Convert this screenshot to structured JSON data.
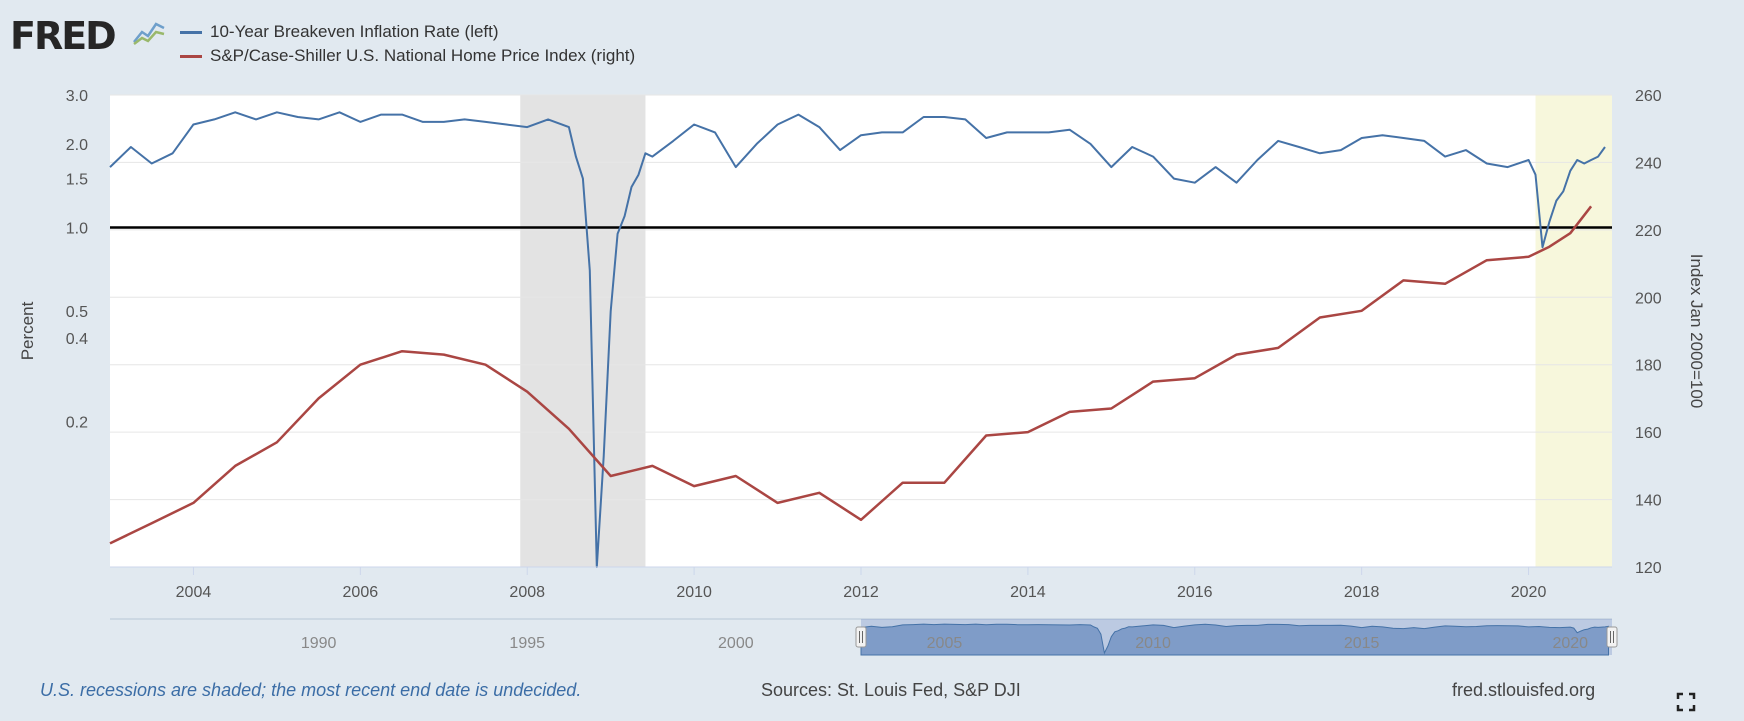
{
  "brand": {
    "logo_text": "FRED",
    "logo_icon": "fred-line-graph-icon"
  },
  "legend": [
    {
      "label": "10-Year Breakeven Inflation Rate (left)",
      "color": "#4572a7"
    },
    {
      "label": "S&P/Case-Shiller U.S. National Home Price Index (right)",
      "color": "#aa4643"
    }
  ],
  "footer": {
    "note": "U.S. recessions are shaded; the most recent end date is undecided.",
    "sources": "Sources: St. Louis Fed, S&P DJI",
    "site": "fred.stlouisfed.org",
    "fullscreen_icon": "fullscreen-icon"
  },
  "colors": {
    "breakeven": "#4572a7",
    "home_price": "#aa4643",
    "recession_shade": "#e3e3e3",
    "undecided_shade": "#f7f7dc",
    "navigator": "#7f9cc8"
  },
  "chart_data": {
    "type": "line",
    "title": "",
    "xlabel": "",
    "x_ticks": [
      "2004",
      "2006",
      "2008",
      "2010",
      "2012",
      "2014",
      "2016",
      "2018",
      "2020"
    ],
    "xlim": [
      "2003-01",
      "2021-01"
    ],
    "left_axis": {
      "label": "Percent",
      "scale": "log",
      "ticks": [
        3.0,
        2.0,
        1.5,
        1.0,
        0.5,
        0.4,
        0.2
      ],
      "tick_labels": [
        "3.0",
        "2.0",
        "1.5",
        "1.0",
        "0.5",
        "0.4",
        "0.2"
      ],
      "range": [
        0.06,
        3.0
      ]
    },
    "right_axis": {
      "label": "Index Jan 2000=100",
      "scale": "linear",
      "ticks": [
        120,
        140,
        160,
        180,
        200,
        220,
        240,
        260
      ],
      "range": [
        120,
        260
      ]
    },
    "reference_line": {
      "axis": "left",
      "value": 1.0,
      "color": "#000000"
    },
    "shaded_periods": [
      {
        "start": "2007-12",
        "end": "2009-06",
        "kind": "recession"
      },
      {
        "start": "2020-02",
        "end": "2021-01",
        "kind": "recession-undecided"
      }
    ],
    "series": [
      {
        "name": "10-Year Breakeven Inflation Rate (left)",
        "axis": "left",
        "color": "#4572a7",
        "x": [
          "2003-01",
          "2003-04",
          "2003-07",
          "2003-10",
          "2004-01",
          "2004-04",
          "2004-07",
          "2004-10",
          "2005-01",
          "2005-04",
          "2005-07",
          "2005-10",
          "2006-01",
          "2006-04",
          "2006-07",
          "2006-10",
          "2007-01",
          "2007-04",
          "2007-07",
          "2007-10",
          "2008-01",
          "2008-04",
          "2008-07",
          "2008-08",
          "2008-09",
          "2008-10",
          "2008-11",
          "2008-12",
          "2009-01",
          "2009-02",
          "2009-03",
          "2009-04",
          "2009-05",
          "2009-06",
          "2009-07",
          "2009-10",
          "2010-01",
          "2010-04",
          "2010-07",
          "2010-10",
          "2011-01",
          "2011-04",
          "2011-07",
          "2011-10",
          "2012-01",
          "2012-04",
          "2012-07",
          "2012-10",
          "2013-01",
          "2013-04",
          "2013-07",
          "2013-10",
          "2014-01",
          "2014-04",
          "2014-07",
          "2014-10",
          "2015-01",
          "2015-04",
          "2015-07",
          "2015-10",
          "2016-01",
          "2016-04",
          "2016-07",
          "2016-10",
          "2017-01",
          "2017-04",
          "2017-07",
          "2017-10",
          "2018-01",
          "2018-04",
          "2018-07",
          "2018-10",
          "2019-01",
          "2019-04",
          "2019-07",
          "2019-10",
          "2020-01",
          "2020-02",
          "2020-03",
          "2020-04",
          "2020-05",
          "2020-06",
          "2020-07",
          "2020-08",
          "2020-09",
          "2020-10",
          "2020-11",
          "2020-12"
        ],
        "values": [
          1.65,
          1.95,
          1.7,
          1.85,
          2.35,
          2.45,
          2.6,
          2.45,
          2.6,
          2.5,
          2.45,
          2.6,
          2.4,
          2.55,
          2.55,
          2.4,
          2.4,
          2.45,
          2.4,
          2.35,
          2.3,
          2.45,
          2.3,
          1.8,
          1.5,
          0.7,
          0.06,
          0.15,
          0.5,
          0.95,
          1.1,
          1.4,
          1.55,
          1.85,
          1.8,
          2.05,
          2.35,
          2.2,
          1.65,
          2.0,
          2.35,
          2.55,
          2.3,
          1.9,
          2.15,
          2.2,
          2.2,
          2.5,
          2.5,
          2.45,
          2.1,
          2.2,
          2.2,
          2.2,
          2.25,
          2.0,
          1.65,
          1.95,
          1.8,
          1.5,
          1.45,
          1.65,
          1.45,
          1.75,
          2.05,
          1.95,
          1.85,
          1.9,
          2.1,
          2.15,
          2.1,
          2.05,
          1.8,
          1.9,
          1.7,
          1.65,
          1.75,
          1.55,
          0.85,
          1.05,
          1.25,
          1.35,
          1.6,
          1.75,
          1.7,
          1.75,
          1.8,
          1.95
        ]
      },
      {
        "name": "S&P/Case-Shiller U.S. National Home Price Index (right)",
        "axis": "right",
        "color": "#aa4643",
        "x": [
          "2003-01",
          "2003-07",
          "2004-01",
          "2004-07",
          "2005-01",
          "2005-07",
          "2006-01",
          "2006-07",
          "2007-01",
          "2007-07",
          "2008-01",
          "2008-07",
          "2009-01",
          "2009-07",
          "2010-01",
          "2010-07",
          "2011-01",
          "2011-07",
          "2012-01",
          "2012-07",
          "2013-01",
          "2013-07",
          "2014-01",
          "2014-07",
          "2015-01",
          "2015-07",
          "2016-01",
          "2016-07",
          "2017-01",
          "2017-07",
          "2018-01",
          "2018-07",
          "2019-01",
          "2019-07",
          "2020-01",
          "2020-04",
          "2020-07",
          "2020-10"
        ],
        "values": [
          127,
          133,
          139,
          150,
          157,
          170,
          180,
          184,
          183,
          180,
          172,
          161,
          147,
          150,
          144,
          147,
          139,
          142,
          134,
          145,
          145,
          159,
          160,
          166,
          167,
          175,
          176,
          183,
          185,
          194,
          196,
          205,
          204,
          211,
          212,
          215,
          219,
          227
        ]
      }
    ],
    "navigator": {
      "tick_labels": [
        "1990",
        "1995",
        "2000",
        "2005",
        "2010",
        "2015",
        "2020"
      ],
      "range": [
        "1985-01",
        "2021-01"
      ],
      "selected": [
        "2003-01",
        "2021-01"
      ]
    }
  }
}
